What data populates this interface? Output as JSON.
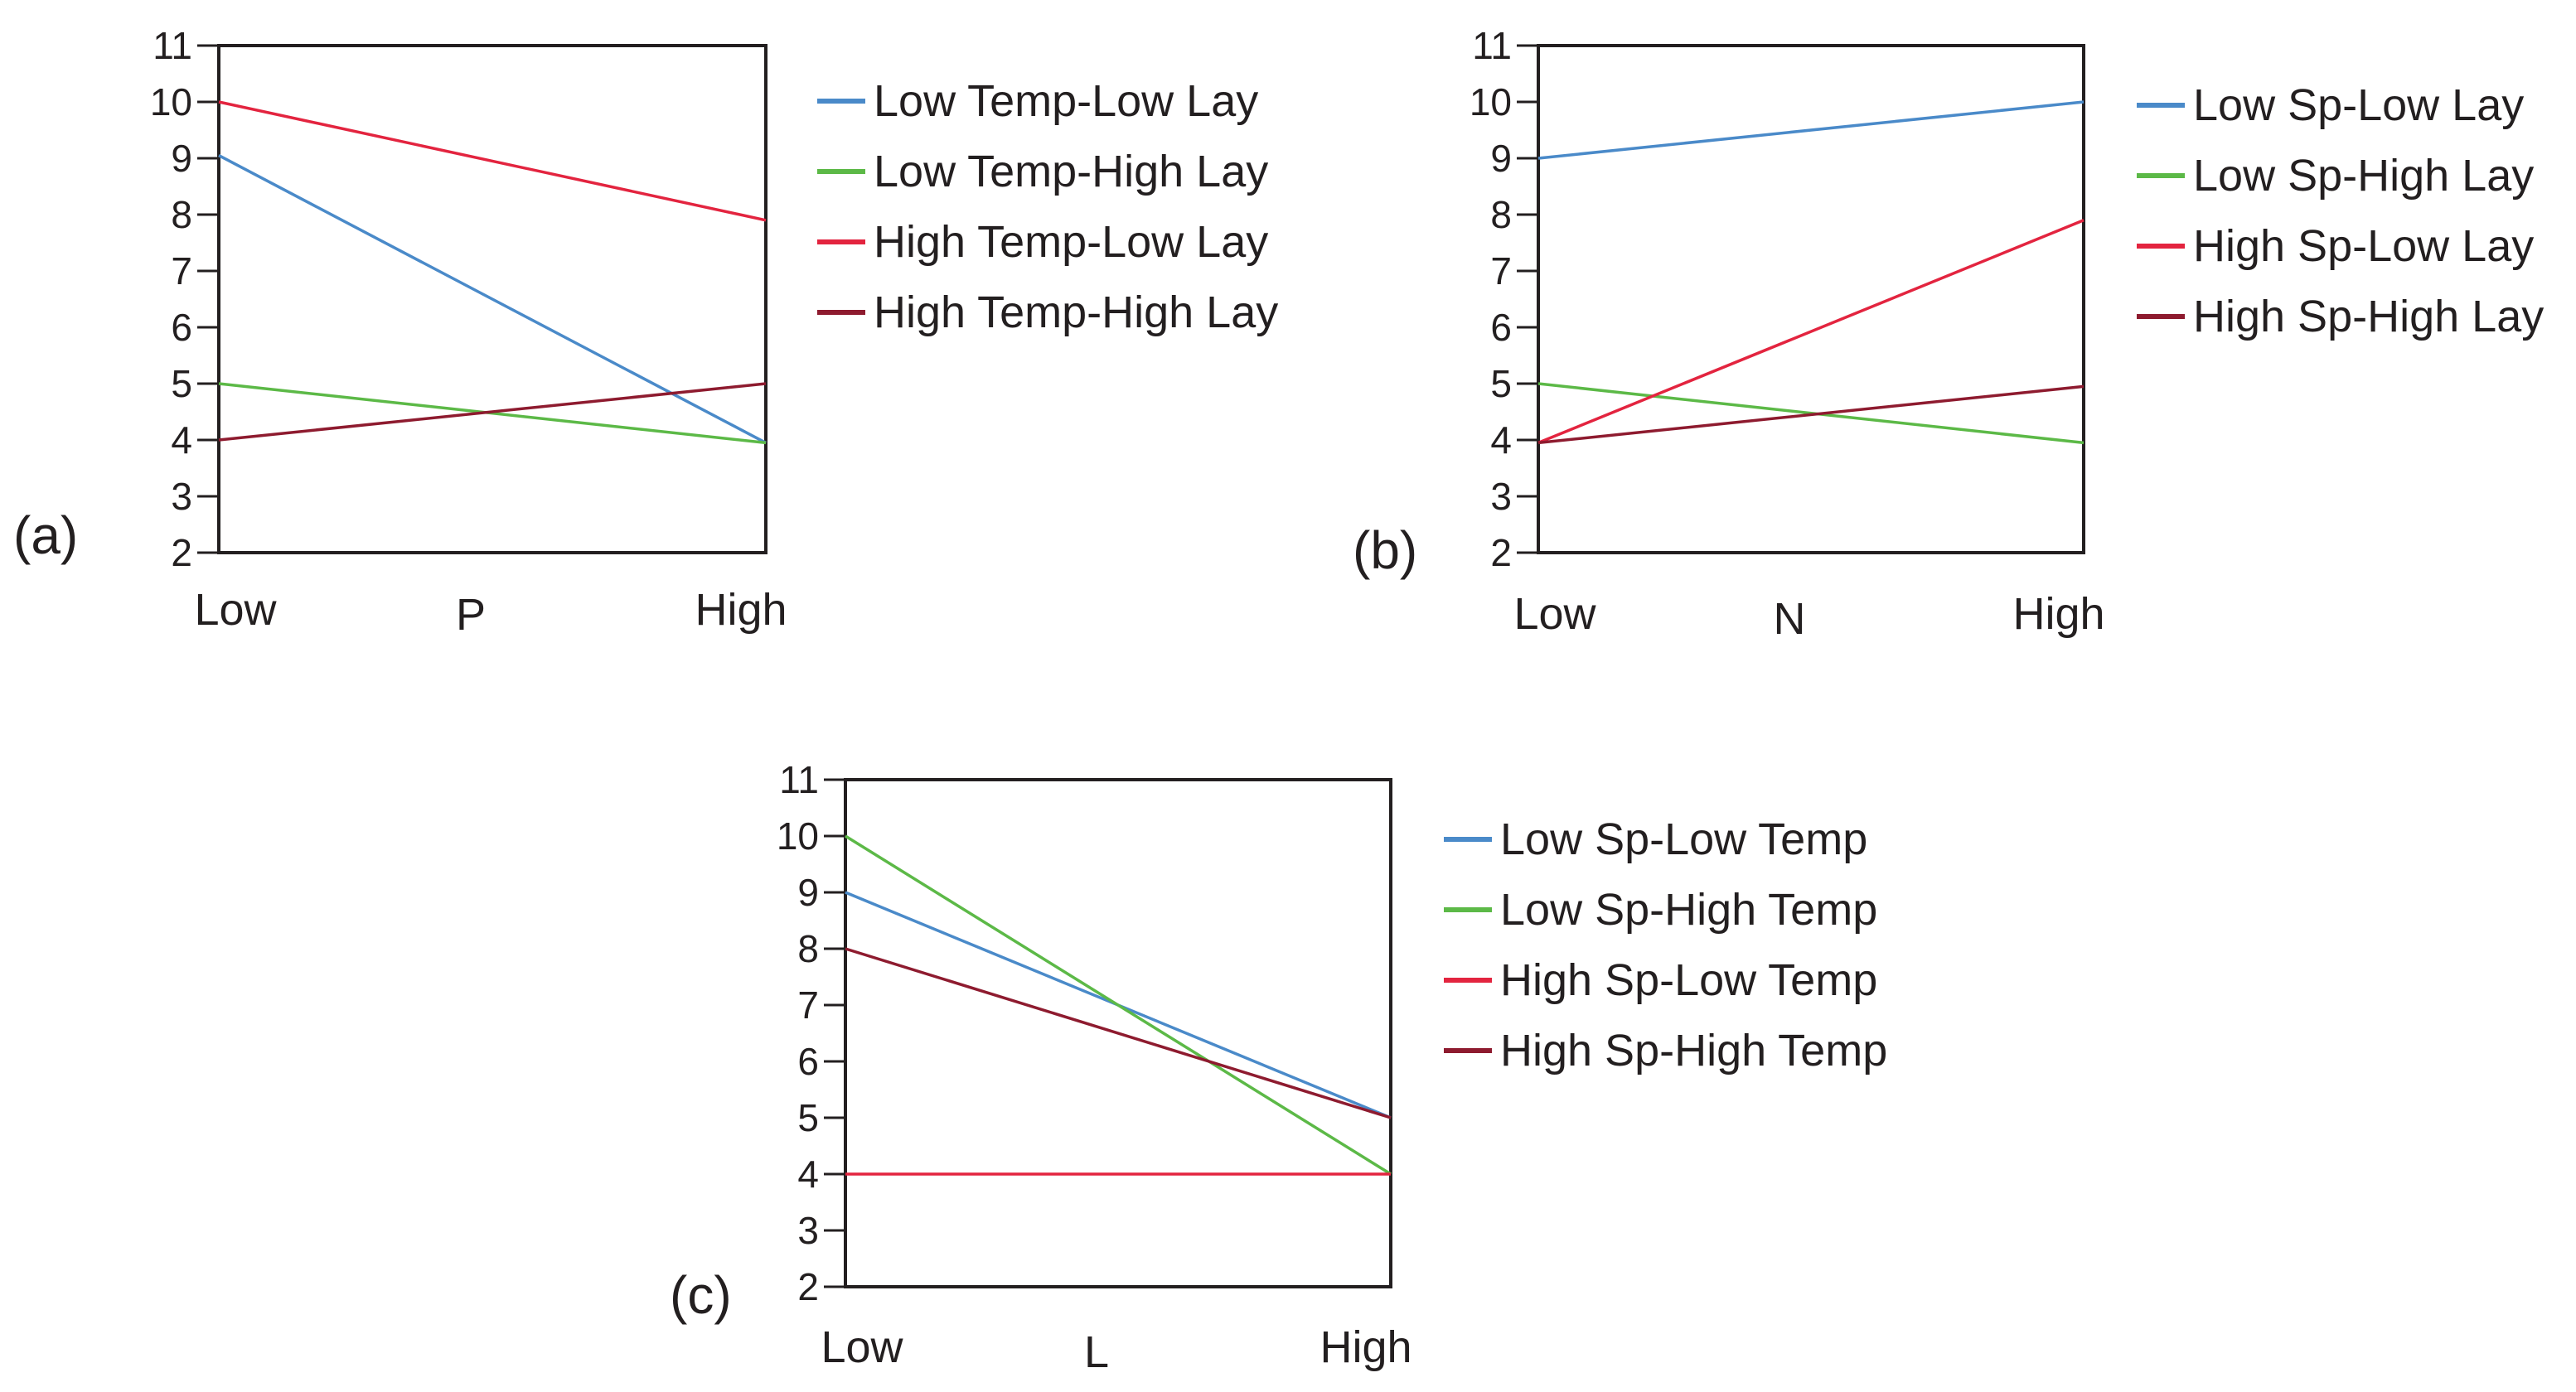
{
  "chart_data": [
    {
      "type": "line",
      "panel_label": "(a)",
      "xlabel": "P",
      "categories": [
        "Low",
        "High"
      ],
      "ylim": [
        2,
        11
      ],
      "yticks": [
        2,
        3,
        4,
        5,
        6,
        7,
        8,
        9,
        10,
        11
      ],
      "legend_position": "right",
      "grid": false,
      "series": [
        {
          "name": "Low Temp-Low Lay",
          "color": "#4a8ac9",
          "values": [
            9.05,
            3.95
          ]
        },
        {
          "name": "Low Temp-High Lay",
          "color": "#5cb947",
          "values": [
            5,
            3.95
          ]
        },
        {
          "name": "High Temp-Low Lay",
          "color": "#e3243f",
          "values": [
            10,
            7.9
          ]
        },
        {
          "name": "High Temp-High Lay",
          "color": "#8e1b2f",
          "values": [
            4,
            5
          ]
        }
      ]
    },
    {
      "type": "line",
      "panel_label": "(b)",
      "xlabel": "N",
      "categories": [
        "Low",
        "High"
      ],
      "ylim": [
        2,
        11
      ],
      "yticks": [
        2,
        3,
        4,
        5,
        6,
        7,
        8,
        9,
        10,
        11
      ],
      "legend_position": "right",
      "grid": false,
      "series": [
        {
          "name": "Low Sp-Low Lay",
          "color": "#4a8ac9",
          "values": [
            9,
            10
          ]
        },
        {
          "name": "Low Sp-High Lay",
          "color": "#5cb947",
          "values": [
            5,
            3.95
          ]
        },
        {
          "name": "High Sp-Low Lay",
          "color": "#e3243f",
          "values": [
            3.95,
            7.9
          ]
        },
        {
          "name": "High Sp-High Lay",
          "color": "#8e1b2f",
          "values": [
            3.95,
            4.95
          ]
        }
      ]
    },
    {
      "type": "line",
      "panel_label": "(c)",
      "xlabel": "L",
      "categories": [
        "Low",
        "High"
      ],
      "ylim": [
        2,
        11
      ],
      "yticks": [
        2,
        3,
        4,
        5,
        6,
        7,
        8,
        9,
        10,
        11
      ],
      "legend_position": "right",
      "grid": false,
      "series": [
        {
          "name": "Low Sp-Low Temp",
          "color": "#4a8ac9",
          "values": [
            9,
            5
          ]
        },
        {
          "name": "Low Sp-High Temp",
          "color": "#5cb947",
          "values": [
            10,
            4
          ]
        },
        {
          "name": "High Sp-Low Temp",
          "color": "#e3243f",
          "values": [
            4,
            4
          ]
        },
        {
          "name": "High Sp-High Temp",
          "color": "#8e1b2f",
          "values": [
            8,
            5
          ]
        }
      ]
    }
  ]
}
